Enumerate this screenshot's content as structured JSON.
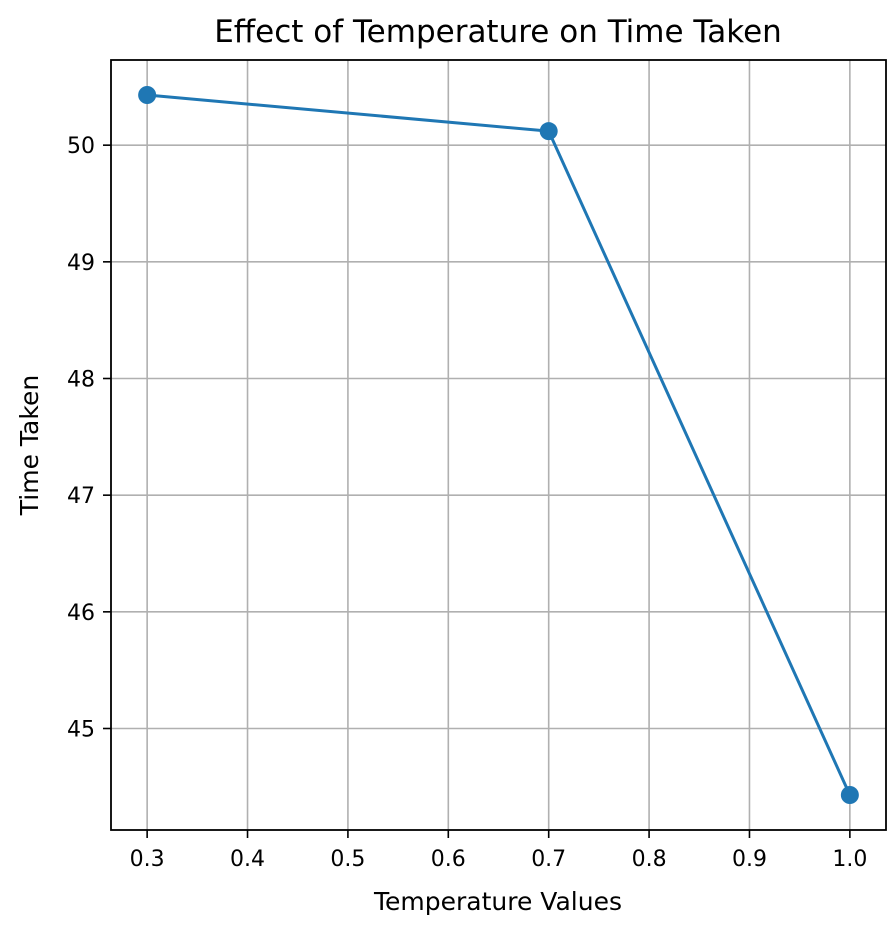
{
  "chart_data": {
    "type": "line",
    "title": "Effect of Temperature on Time Taken",
    "xlabel": "Temperature Values",
    "ylabel": "Time Taken",
    "x": [
      0.3,
      0.7,
      1.0
    ],
    "series": [
      {
        "values": [
          50.43,
          50.12,
          44.43
        ],
        "color": "#1f77b4",
        "marker": "circle"
      }
    ],
    "xlim": [
      0.264,
      1.036
    ],
    "ylim": [
      44.13,
      50.73
    ],
    "xticks": [
      0.3,
      0.4,
      0.5,
      0.6,
      0.7,
      0.8,
      0.9,
      1.0
    ],
    "xtick_labels": [
      "0.3",
      "0.4",
      "0.5",
      "0.6",
      "0.7",
      "0.8",
      "0.9",
      "1.0"
    ],
    "yticks": [
      45,
      46,
      47,
      48,
      49,
      50
    ],
    "ytick_labels": [
      "45",
      "46",
      "47",
      "48",
      "49",
      "50"
    ],
    "grid": true
  }
}
